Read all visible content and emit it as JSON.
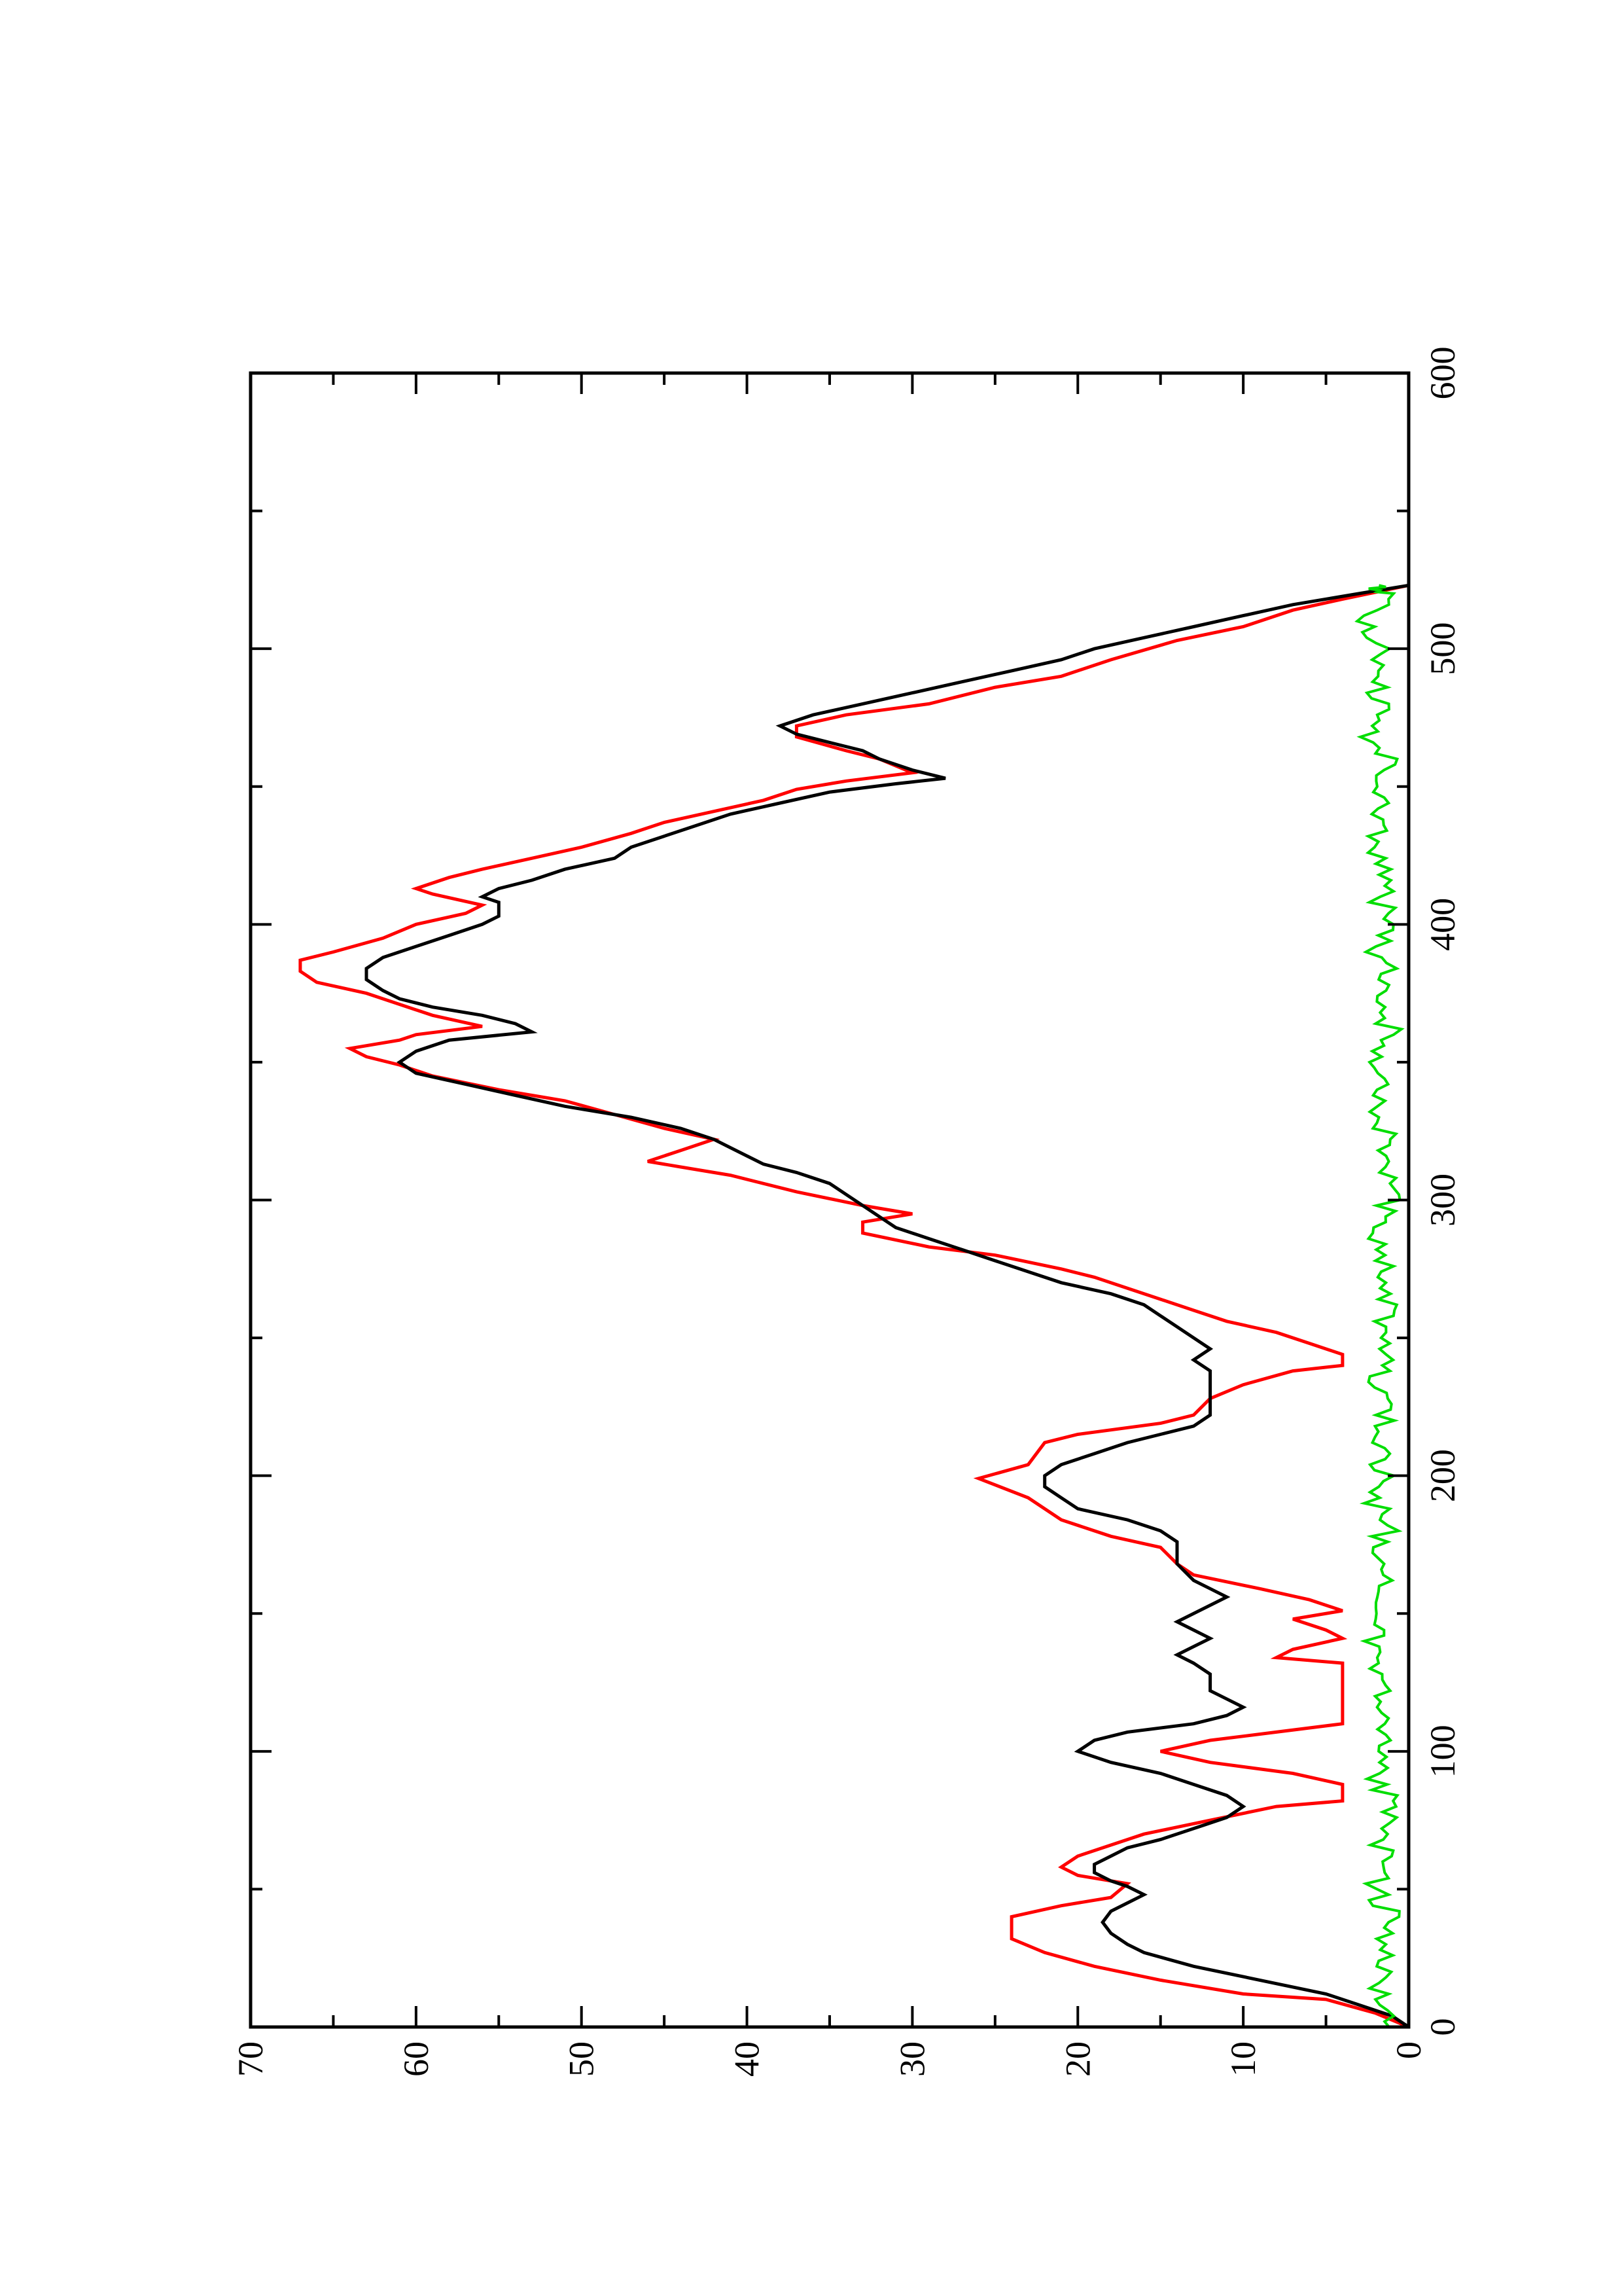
{
  "chart_data": {
    "type": "line",
    "orientation": "rotated 90 degrees counter-clockwise (x axis runs bottom to top, y axis runs right to left)",
    "title": "",
    "xlabel": "",
    "ylabel": "",
    "xlim": [
      0,
      600
    ],
    "ylim": [
      0,
      70
    ],
    "x_ticks": [
      "0",
      "100",
      "200",
      "300",
      "400",
      "500",
      "600"
    ],
    "y_ticks": [
      "0",
      "10",
      "20",
      "30",
      "40",
      "50",
      "60",
      "70"
    ],
    "x_minor_step": 50,
    "y_minor_step": 5,
    "grid": false,
    "legend": "none",
    "series": [
      {
        "color": "#ff0000",
        "style": "step",
        "points": [
          [
            0,
            0
          ],
          [
            5,
            2
          ],
          [
            10,
            5
          ],
          [
            12,
            10
          ],
          [
            17,
            15
          ],
          [
            22,
            19
          ],
          [
            27,
            22
          ],
          [
            32,
            24
          ],
          [
            40,
            24
          ],
          [
            44,
            21
          ],
          [
            47,
            18
          ],
          [
            52,
            17
          ],
          [
            55,
            20
          ],
          [
            58,
            21
          ],
          [
            62,
            20
          ],
          [
            66,
            18
          ],
          [
            70,
            16
          ],
          [
            75,
            12
          ],
          [
            80,
            8
          ],
          [
            82,
            4
          ],
          [
            88,
            4
          ],
          [
            92,
            7
          ],
          [
            96,
            12
          ],
          [
            100,
            15
          ],
          [
            104,
            12
          ],
          [
            107,
            8
          ],
          [
            110,
            4
          ],
          [
            132,
            4
          ],
          [
            134,
            8
          ],
          [
            137,
            7
          ],
          [
            141,
            4
          ],
          [
            144,
            5
          ],
          [
            148,
            7
          ],
          [
            151,
            4
          ],
          [
            155,
            6
          ],
          [
            159,
            9
          ],
          [
            164,
            13
          ],
          [
            168,
            14
          ],
          [
            174,
            15
          ],
          [
            178,
            18
          ],
          [
            184,
            21
          ],
          [
            192,
            23
          ],
          [
            199,
            26
          ],
          [
            204,
            23
          ],
          [
            212,
            22
          ],
          [
            215,
            20
          ],
          [
            219,
            15
          ],
          [
            222,
            13
          ],
          [
            228,
            12
          ],
          [
            233,
            10
          ],
          [
            238,
            7
          ],
          [
            240,
            4
          ],
          [
            244,
            4
          ],
          [
            248,
            6
          ],
          [
            252,
            8
          ],
          [
            256,
            11
          ],
          [
            260,
            13
          ],
          [
            264,
            15
          ],
          [
            268,
            17
          ],
          [
            272,
            19
          ],
          [
            275,
            21
          ],
          [
            280,
            25
          ],
          [
            283,
            29
          ],
          [
            288,
            33
          ],
          [
            292,
            33
          ],
          [
            295,
            30
          ],
          [
            298,
            33
          ],
          [
            303,
            37
          ],
          [
            309,
            41
          ],
          [
            312,
            44
          ],
          [
            314,
            46
          ],
          [
            318,
            44
          ],
          [
            322,
            42
          ],
          [
            326,
            45
          ],
          [
            331,
            48
          ],
          [
            336,
            51
          ],
          [
            340,
            55
          ],
          [
            345,
            59
          ],
          [
            349,
            61
          ],
          [
            352,
            63
          ],
          [
            355,
            64
          ],
          [
            358,
            61
          ],
          [
            360,
            60
          ],
          [
            363,
            56
          ],
          [
            367,
            59
          ],
          [
            371,
            61
          ],
          [
            375,
            63
          ],
          [
            379,
            66
          ],
          [
            383,
            67
          ],
          [
            387,
            67
          ],
          [
            390,
            65
          ],
          [
            395,
            62
          ],
          [
            400,
            60
          ],
          [
            404,
            57
          ],
          [
            407,
            56
          ],
          [
            411,
            59
          ],
          [
            413,
            60
          ],
          [
            417,
            58
          ],
          [
            420,
            56
          ],
          [
            424,
            53
          ],
          [
            428,
            50
          ],
          [
            433,
            47
          ],
          [
            437,
            45
          ],
          [
            441,
            42
          ],
          [
            445,
            39
          ],
          [
            449,
            37
          ],
          [
            452,
            34
          ],
          [
            455,
            30
          ],
          [
            460,
            32
          ],
          [
            463,
            34
          ],
          [
            468,
            37
          ],
          [
            472,
            37
          ],
          [
            476,
            34
          ],
          [
            480,
            29
          ],
          [
            486,
            25
          ],
          [
            490,
            21
          ],
          [
            496,
            18
          ],
          [
            503,
            14
          ],
          [
            508,
            10
          ],
          [
            514,
            7
          ],
          [
            518,
            4
          ],
          [
            523,
            0
          ]
        ]
      },
      {
        "color": "#000000",
        "style": "line",
        "points": [
          [
            0,
            0
          ],
          [
            4,
            1
          ],
          [
            8,
            3
          ],
          [
            12,
            5
          ],
          [
            17,
            9
          ],
          [
            22,
            13
          ],
          [
            27,
            16
          ],
          [
            30,
            17
          ],
          [
            34,
            18
          ],
          [
            38,
            18.5
          ],
          [
            42,
            18
          ],
          [
            45,
            17
          ],
          [
            48,
            16
          ],
          [
            51,
            17
          ],
          [
            53,
            18
          ],
          [
            56,
            19
          ],
          [
            59,
            19
          ],
          [
            62,
            18
          ],
          [
            65,
            17
          ],
          [
            68,
            15
          ],
          [
            72,
            13
          ],
          [
            76,
            11
          ],
          [
            80,
            10
          ],
          [
            84,
            11
          ],
          [
            88,
            13
          ],
          [
            92,
            15
          ],
          [
            96,
            18
          ],
          [
            100,
            20
          ],
          [
            104,
            19
          ],
          [
            107,
            17
          ],
          [
            110,
            13
          ],
          [
            113,
            11
          ],
          [
            116,
            10
          ],
          [
            119,
            11
          ],
          [
            122,
            12
          ],
          [
            128,
            12
          ],
          [
            132,
            13
          ],
          [
            135,
            14
          ],
          [
            138,
            13
          ],
          [
            141,
            12
          ],
          [
            144,
            13
          ],
          [
            147,
            14
          ],
          [
            150,
            13
          ],
          [
            153,
            12
          ],
          [
            156,
            11
          ],
          [
            159,
            12
          ],
          [
            162,
            13
          ],
          [
            168,
            14
          ],
          [
            172,
            14
          ],
          [
            176,
            14
          ],
          [
            180,
            15
          ],
          [
            184,
            17
          ],
          [
            188,
            20
          ],
          [
            192,
            21
          ],
          [
            196,
            22
          ],
          [
            200,
            22
          ],
          [
            204,
            21
          ],
          [
            208,
            19
          ],
          [
            212,
            17
          ],
          [
            215,
            15
          ],
          [
            218,
            13
          ],
          [
            222,
            12
          ],
          [
            226,
            12
          ],
          [
            230,
            12
          ],
          [
            234,
            12
          ],
          [
            238,
            12
          ],
          [
            242,
            13
          ],
          [
            246,
            12
          ],
          [
            250,
            13
          ],
          [
            254,
            14
          ],
          [
            258,
            15
          ],
          [
            262,
            16
          ],
          [
            266,
            18
          ],
          [
            270,
            21
          ],
          [
            274,
            23
          ],
          [
            278,
            25
          ],
          [
            282,
            27
          ],
          [
            286,
            29
          ],
          [
            290,
            31
          ],
          [
            294,
            32
          ],
          [
            298,
            33
          ],
          [
            302,
            34
          ],
          [
            306,
            35
          ],
          [
            310,
            37
          ],
          [
            313,
            39
          ],
          [
            316,
            40
          ],
          [
            319,
            41
          ],
          [
            322,
            42
          ],
          [
            326,
            44
          ],
          [
            330,
            47
          ],
          [
            334,
            51
          ],
          [
            338,
            54
          ],
          [
            342,
            57
          ],
          [
            346,
            60
          ],
          [
            350,
            61
          ],
          [
            354,
            60
          ],
          [
            358,
            58
          ],
          [
            361,
            53
          ],
          [
            364,
            54
          ],
          [
            367,
            56
          ],
          [
            370,
            59
          ],
          [
            373,
            61
          ],
          [
            376,
            62
          ],
          [
            380,
            63
          ],
          [
            384,
            63
          ],
          [
            388,
            62
          ],
          [
            392,
            60
          ],
          [
            396,
            58
          ],
          [
            400,
            56
          ],
          [
            403,
            55
          ],
          [
            405,
            55
          ],
          [
            408,
            55
          ],
          [
            410,
            56
          ],
          [
            413,
            55
          ],
          [
            416,
            53
          ],
          [
            420,
            51
          ],
          [
            424,
            48
          ],
          [
            428,
            47
          ],
          [
            432,
            45
          ],
          [
            436,
            43
          ],
          [
            440,
            41
          ],
          [
            444,
            38
          ],
          [
            448,
            35
          ],
          [
            451,
            31
          ],
          [
            453,
            28
          ],
          [
            456,
            30
          ],
          [
            460,
            32
          ],
          [
            463,
            33
          ],
          [
            466,
            35
          ],
          [
            469,
            37
          ],
          [
            472,
            38
          ],
          [
            476,
            36
          ],
          [
            480,
            33
          ],
          [
            484,
            30
          ],
          [
            488,
            27
          ],
          [
            492,
            24
          ],
          [
            496,
            21
          ],
          [
            500,
            19
          ],
          [
            504,
            16
          ],
          [
            508,
            13
          ],
          [
            512,
            10
          ],
          [
            516,
            7
          ],
          [
            520,
            3
          ],
          [
            523,
            0
          ]
        ]
      },
      {
        "color": "#00dd00",
        "style": "noisy",
        "approx_range_y": [
          0,
          3.5
        ],
        "x_range": [
          0,
          523
        ],
        "points": [
          [
            0,
            1.2
          ],
          [
            10,
            2.0
          ],
          [
            20,
            1.4
          ],
          [
            30,
            1.8
          ],
          [
            40,
            1.1
          ],
          [
            50,
            2.0
          ],
          [
            60,
            1.3
          ],
          [
            70,
            1.7
          ],
          [
            80,
            1.0
          ],
          [
            90,
            1.9
          ],
          [
            100,
            1.4
          ],
          [
            110,
            2.1
          ],
          [
            120,
            1.3
          ],
          [
            130,
            1.8
          ],
          [
            140,
            2.3
          ],
          [
            150,
            1.2
          ],
          [
            160,
            1.7
          ],
          [
            170,
            2.0
          ],
          [
            180,
            1.4
          ],
          [
            190,
            1.9
          ],
          [
            200,
            1.5
          ],
          [
            210,
            2.0
          ],
          [
            220,
            1.3
          ],
          [
            230,
            2.1
          ],
          [
            240,
            1.6
          ],
          [
            250,
            1.9
          ],
          [
            260,
            1.4
          ],
          [
            270,
            2.0
          ],
          [
            280,
            1.5
          ],
          [
            290,
            1.9
          ],
          [
            300,
            1.2
          ],
          [
            310,
            1.6
          ],
          [
            320,
            1.1
          ],
          [
            330,
            1.8
          ],
          [
            340,
            1.3
          ],
          [
            350,
            1.7
          ],
          [
            360,
            1.0
          ],
          [
            370,
            1.6
          ],
          [
            380,
            1.2
          ],
          [
            390,
            1.8
          ],
          [
            400,
            1.4
          ],
          [
            410,
            1.7
          ],
          [
            420,
            1.5
          ],
          [
            430,
            2.0
          ],
          [
            440,
            1.6
          ],
          [
            450,
            2.3
          ],
          [
            460,
            1.4
          ],
          [
            470,
            2.5
          ],
          [
            480,
            1.8
          ],
          [
            490,
            2.2
          ],
          [
            500,
            1.6
          ],
          [
            510,
            2.4
          ],
          [
            520,
            1.5
          ],
          [
            523,
            1.8
          ]
        ]
      }
    ]
  }
}
